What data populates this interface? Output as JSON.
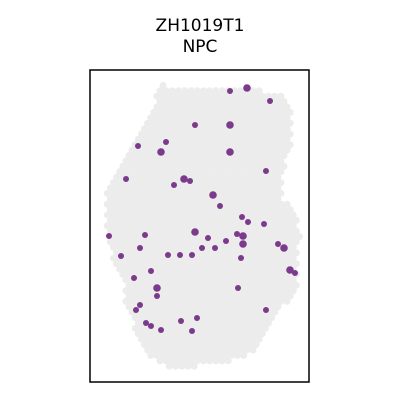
{
  "chart_data": {
    "type": "scatter",
    "title": "ZH1019T1",
    "subtitle": "NPC",
    "xlabel": "",
    "ylabel": "",
    "grid": false,
    "legend": "none",
    "colors": {
      "tissue": "#ececec",
      "highlight": "#7b3a8c",
      "frame": "#000000"
    },
    "series": [
      {
        "points": [
          [
            247,
            88
          ],
          [
            230,
            91
          ],
          [
            270,
            101
          ],
          [
            195,
            125
          ],
          [
            230,
            125
          ],
          [
            166,
            142
          ],
          [
            138,
            146
          ],
          [
            161,
            152
          ],
          [
            230,
            152
          ],
          [
            266,
            171
          ],
          [
            126,
            179
          ],
          [
            184,
            179
          ],
          [
            174,
            185
          ],
          [
            190,
            181
          ],
          [
            213,
            195
          ],
          [
            220,
            206
          ],
          [
            242,
            217
          ],
          [
            248,
            222
          ],
          [
            264,
            224
          ],
          [
            195,
            232
          ],
          [
            145,
            235
          ],
          [
            109,
            236
          ],
          [
            208,
            238
          ],
          [
            237,
            234
          ],
          [
            243,
            236
          ],
          [
            226,
            241
          ],
          [
            243,
            244
          ],
          [
            278,
            244
          ],
          [
            284,
            248
          ],
          [
            202,
            248
          ],
          [
            215,
            248
          ],
          [
            140,
            248
          ],
          [
            121,
            256
          ],
          [
            168,
            255
          ],
          [
            180,
            255
          ],
          [
            192,
            255
          ],
          [
            241,
            258
          ],
          [
            151,
            271
          ],
          [
            290,
            270
          ],
          [
            295,
            273
          ],
          [
            134,
            278
          ],
          [
            238,
            288
          ],
          [
            157,
            288
          ],
          [
            157,
            296
          ],
          [
            140,
            305
          ],
          [
            197,
            318
          ],
          [
            181,
            321
          ],
          [
            146,
            323
          ],
          [
            151,
            326
          ],
          [
            161,
            330
          ],
          [
            192,
            331
          ],
          [
            266,
            310
          ],
          [
            136,
            310
          ]
        ],
        "sizes": [
          "L",
          "M",
          "M",
          "M",
          "L",
          "M",
          "M",
          "L",
          "L",
          "M",
          "M",
          "L",
          "M",
          "M",
          "L",
          "M",
          "M",
          "M",
          "M",
          "L",
          "M",
          "M",
          "M",
          "M",
          "L",
          "M",
          "L",
          "M",
          "L",
          "M",
          "M",
          "M",
          "M",
          "M",
          "M",
          "M",
          "M",
          "M",
          "L",
          "M",
          "M",
          "M",
          "L",
          "M",
          "M",
          "M",
          "M",
          "M",
          "M",
          "M",
          "M",
          "M",
          "M"
        ]
      }
    ]
  }
}
